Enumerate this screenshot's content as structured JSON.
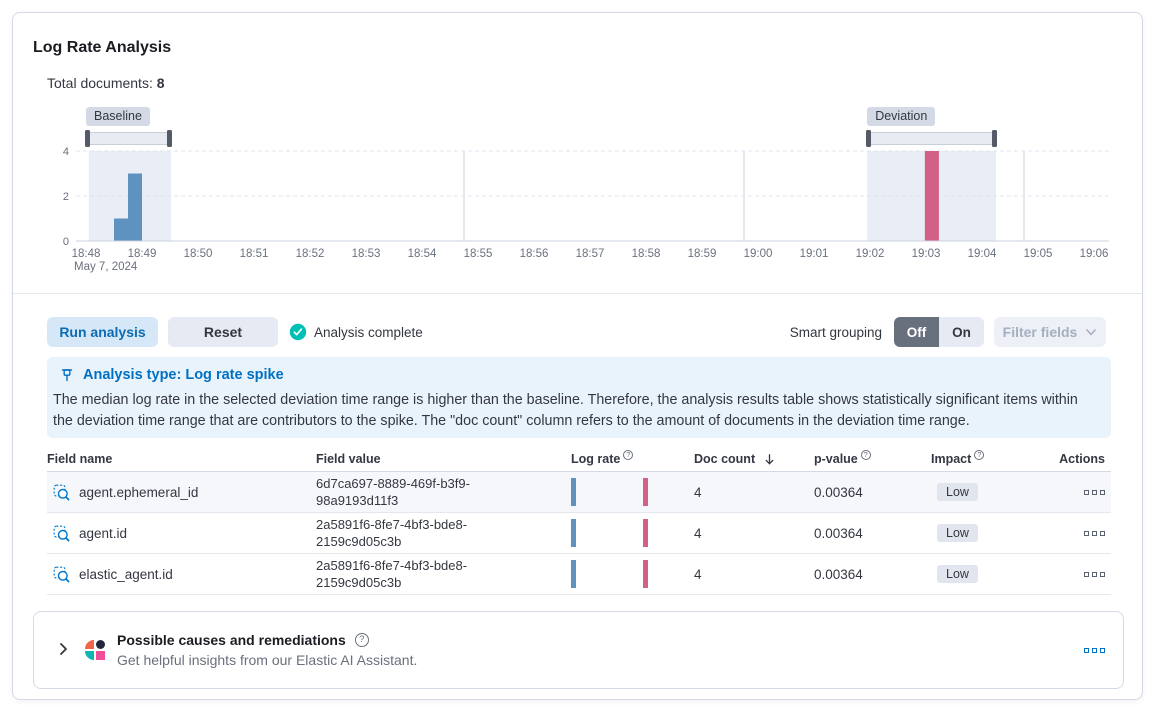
{
  "panel": {
    "title": "Log Rate Analysis",
    "total_documents_label": "Total documents:",
    "total_documents_value": "8"
  },
  "chart_data": {
    "type": "bar",
    "x_axis": {
      "tick_labels": [
        "18:48",
        "18:49",
        "18:50",
        "18:51",
        "18:52",
        "18:53",
        "18:54",
        "18:55",
        "18:56",
        "18:57",
        "18:58",
        "18:59",
        "19:00",
        "19:01",
        "19:02",
        "19:03",
        "19:04",
        "19:05",
        "19:06"
      ],
      "date_label": "May 7, 2024",
      "vgrid_minutes": [
        6.75,
        11.75,
        16.75
      ]
    },
    "y_axis": {
      "ticks": [
        0,
        2,
        4
      ],
      "max": 4
    },
    "bucket_minutes": 0.25,
    "baseline": {
      "label": "Baseline",
      "color": "#6092C0",
      "region": {
        "start": 0.05,
        "end": 1.52
      },
      "brush": {
        "start": 0.0,
        "end": 1.52
      },
      "bars": [
        {
          "start": 0.5,
          "value": 1
        },
        {
          "start": 0.75,
          "value": 3
        }
      ]
    },
    "deviation": {
      "label": "Deviation",
      "color": "#D36086",
      "region": {
        "start": 13.95,
        "end": 16.25
      },
      "brush": {
        "start": 13.95,
        "end": 16.25
      },
      "bars": [
        {
          "start": 14.98,
          "value": 4
        }
      ]
    }
  },
  "controls": {
    "run_label": "Run analysis",
    "reset_label": "Reset",
    "status_label": "Analysis complete",
    "smart_grouping_label": "Smart grouping",
    "off_label": "Off",
    "on_label": "On",
    "filter_fields_label": "Filter fields"
  },
  "callout": {
    "title": "Analysis type: Log rate spike",
    "body": "The median log rate in the selected deviation time range is higher than the baseline. Therefore, the analysis results table shows statistically significant items within the deviation time range that are contributors to the spike. The \"doc count\" column refers to the amount of documents in the deviation time range."
  },
  "table": {
    "headers": {
      "field_name": "Field name",
      "field_value": "Field value",
      "log_rate": "Log rate",
      "doc_count": "Doc count",
      "p_value": "p-value",
      "impact": "Impact",
      "actions": "Actions"
    },
    "rows": [
      {
        "field_name": "agent.ephemeral_id",
        "field_value": "6d7ca697-8889-469f-b3f9-98a9193d11f3",
        "doc_count": "4",
        "p_value": "0.00364",
        "impact": "Low"
      },
      {
        "field_name": "agent.id",
        "field_value": "2a5891f6-8fe7-4bf3-bde8-2159c9d05c3b",
        "doc_count": "4",
        "p_value": "0.00364",
        "impact": "Low"
      },
      {
        "field_name": "elastic_agent.id",
        "field_value": "2a5891f6-8fe7-4bf3-bde8-2159c9d05c3b",
        "doc_count": "4",
        "p_value": "0.00364",
        "impact": "Low"
      }
    ]
  },
  "ai_panel": {
    "title": "Possible causes and remediations",
    "subtitle": "Get helpful insights from our Elastic AI Assistant."
  },
  "colors": {
    "accent_blue": "#0071C2",
    "bar_baseline": "#6092C0",
    "bar_deviation": "#D36086",
    "selection_region": "#E9EDF5",
    "success_teal": "#00BFB3",
    "border": "#D3DAE6",
    "callout_bg": "#E9F3FB"
  }
}
